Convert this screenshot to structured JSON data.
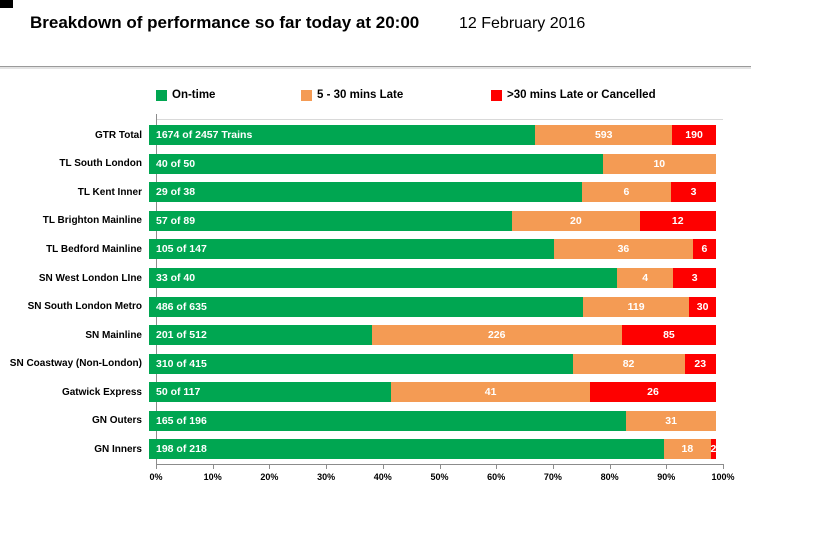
{
  "header": {
    "title": "Breakdown of performance so far today at 20:00",
    "date": "12 February 2016"
  },
  "legend": {
    "items": [
      {
        "label": "On-time",
        "color": "#00A651"
      },
      {
        "label": "5 - 30 mins Late",
        "color": "#F49B54"
      },
      {
        "label": ">30 mins Late or Cancelled",
        "color": "#FE0000"
      }
    ]
  },
  "chart_data": {
    "type": "bar",
    "orientation": "horizontal",
    "stacked": true,
    "title": "Breakdown of performance so far today at 20:00",
    "subtitle": "12 February 2016",
    "xlabel": "",
    "ylabel": "",
    "xlim": [
      0,
      100
    ],
    "xticks": [
      "0%",
      "10%",
      "20%",
      "30%",
      "40%",
      "50%",
      "60%",
      "70%",
      "80%",
      "90%",
      "100%"
    ],
    "legend_position": "top",
    "categories": [
      "GTR Total",
      "TL South London",
      "TL Kent Inner",
      "TL Brighton Mainline",
      "TL Bedford Mainline",
      "SN West London LIne",
      "SN South London Metro",
      "SN Mainline",
      "SN Coastway (Non-London)",
      "Gatwick Express",
      "GN Outers",
      "GN Inners"
    ],
    "totals": [
      2457,
      50,
      38,
      89,
      147,
      40,
      635,
      512,
      415,
      117,
      196,
      218
    ],
    "series": [
      {
        "name": "On-time",
        "color": "#00A651",
        "values": [
          1674,
          40,
          29,
          57,
          105,
          33,
          486,
          201,
          310,
          50,
          165,
          198
        ]
      },
      {
        "name": "5 - 30 mins Late",
        "color": "#F49B54",
        "values": [
          593,
          10,
          6,
          20,
          36,
          4,
          119,
          226,
          82,
          41,
          31,
          18
        ]
      },
      {
        "name": ">30 mins Late or Cancelled",
        "color": "#FE0000",
        "values": [
          190,
          0,
          3,
          12,
          6,
          3,
          30,
          85,
          23,
          26,
          0,
          2
        ]
      }
    ],
    "bar_labels": [
      [
        "1674 of 2457 Trains",
        "40 of 50",
        "29 of 38",
        "57 of 89",
        "105 of 147",
        "33 of 40",
        "486 of 635",
        "201 of 512",
        "310 of 415",
        "50 of 117",
        "165 of 196",
        "198 of 218"
      ],
      [
        "593",
        "10",
        "6",
        "20",
        "36",
        "4",
        "119",
        "226",
        "82",
        "41",
        "31",
        "18"
      ],
      [
        "190",
        "",
        "3",
        "12",
        "6",
        "3",
        "30",
        "85",
        "23",
        "26",
        "",
        "2"
      ]
    ]
  }
}
